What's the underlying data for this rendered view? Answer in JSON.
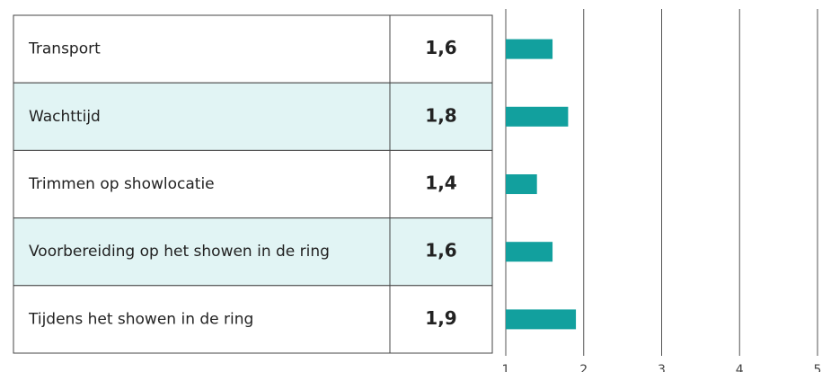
{
  "chart_data": {
    "type": "bar",
    "orientation": "horizontal",
    "categories": [
      "Transport",
      "Wachttijd",
      "Trimmen op showlocatie",
      "Voorbereiding op het showen in de ring",
      "Tijdens het showen in de ring"
    ],
    "values": [
      1.6,
      1.8,
      1.4,
      1.6,
      1.9
    ],
    "value_labels": [
      "1,6",
      "1,8",
      "1,4",
      "1,6",
      "1,9"
    ],
    "color": "#12a09e",
    "xlim": [
      1,
      5
    ],
    "xticks": [
      1,
      2,
      3,
      4,
      5
    ],
    "grid": true
  }
}
